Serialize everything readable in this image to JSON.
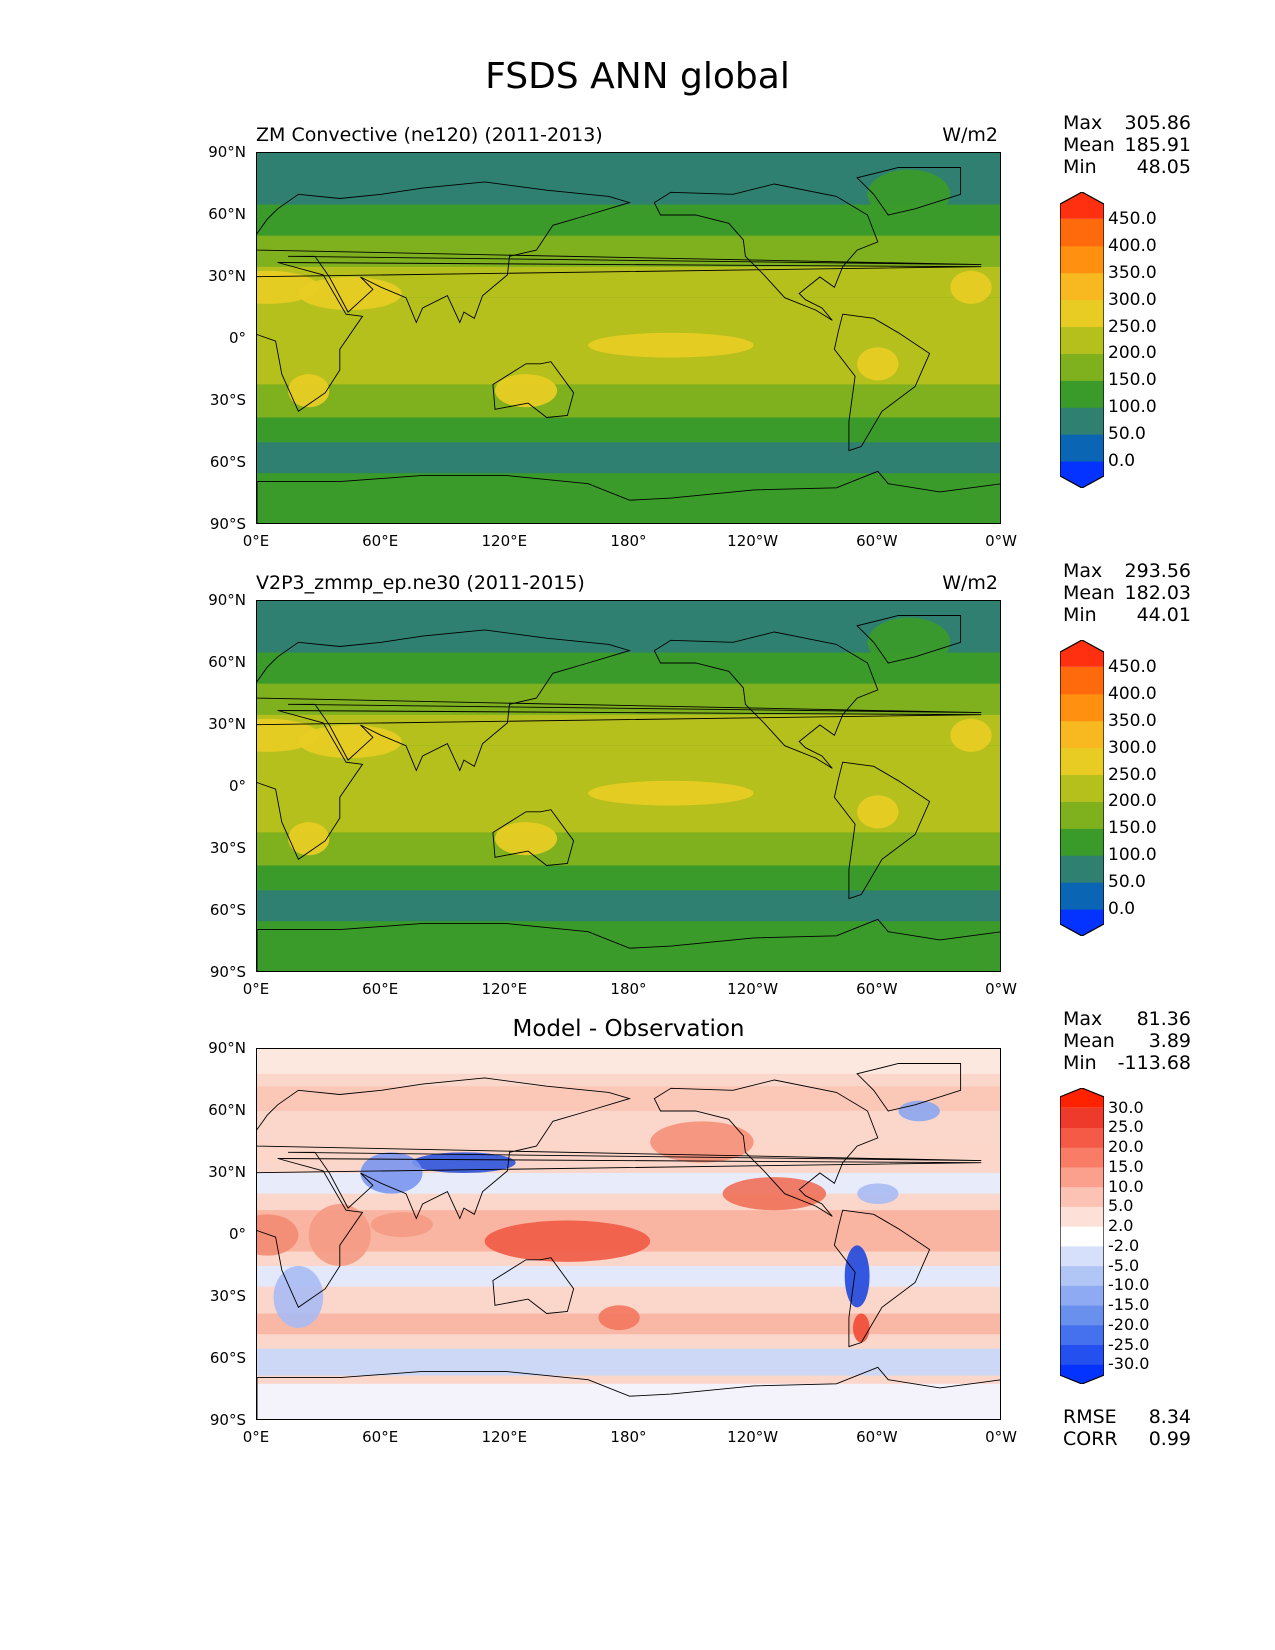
{
  "figure_title": "FSDS ANN global",
  "lat_labels": [
    "90°N",
    "60°N",
    "30°N",
    "0°",
    "30°S",
    "60°S",
    "90°S"
  ],
  "lon_labels": [
    "0°E",
    "60°E",
    "120°E",
    "180°",
    "120°W",
    "60°W",
    "0°W"
  ],
  "panels": [
    {
      "id": "test",
      "title": "ZM Convective (ne120) (2011-2013)",
      "units": "W/m2",
      "stats": {
        "max_label": "Max",
        "max": "305.86",
        "mean_label": "Mean",
        "mean": "185.91",
        "min_label": "Min",
        "min": "48.05"
      },
      "colorbar": {
        "labels": [
          "450.0",
          "400.0",
          "350.0",
          "300.0",
          "250.0",
          "200.0",
          "150.0",
          "100.0",
          "50.0",
          "0.0"
        ],
        "colors": [
          "#0433ff",
          "#0a66b4",
          "#2f8070",
          "#3a9a2a",
          "#7fb01e",
          "#b5c01c",
          "#e8cc24",
          "#f8b820",
          "#ff9010",
          "#ff6a0d",
          "#ff3010"
        ]
      }
    },
    {
      "id": "ref",
      "title": "V2P3_zmmp_ep.ne30 (2011-2015)",
      "units": "W/m2",
      "stats": {
        "max_label": "Max",
        "max": "293.56",
        "mean_label": "Mean",
        "mean": "182.03",
        "min_label": "Min",
        "min": "44.01"
      },
      "colorbar": {
        "labels": [
          "450.0",
          "400.0",
          "350.0",
          "300.0",
          "250.0",
          "200.0",
          "150.0",
          "100.0",
          "50.0",
          "0.0"
        ],
        "colors": [
          "#0433ff",
          "#0a66b4",
          "#2f8070",
          "#3a9a2a",
          "#7fb01e",
          "#b5c01c",
          "#e8cc24",
          "#f8b820",
          "#ff9010",
          "#ff6a0d",
          "#ff3010"
        ]
      }
    },
    {
      "id": "diff",
      "title": "Model - Observation",
      "units": "",
      "stats": {
        "max_label": "Max",
        "max": "81.36",
        "mean_label": "Mean",
        "mean": "3.89",
        "min_label": "Min",
        "min": "-113.68"
      },
      "colorbar": {
        "labels": [
          "30.0",
          "25.0",
          "20.0",
          "15.0",
          "10.0",
          "5.0",
          "2.0",
          "-2.0",
          "-5.0",
          "-10.0",
          "-15.0",
          "-20.0",
          "-25.0",
          "-30.0"
        ],
        "colors": [
          "#0433ff",
          "#2450f0",
          "#4570ee",
          "#6a90ee",
          "#8eaaf2",
          "#b2c6f6",
          "#d6e0fa",
          "#ffffff",
          "#fde0d8",
          "#fcc2b4",
          "#fba08c",
          "#f87c66",
          "#f45a46",
          "#ee3a2a",
          "#ff2200"
        ]
      },
      "rmse_label": "RMSE",
      "rmse": "8.34",
      "corr_label": "CORR",
      "corr": "0.99"
    }
  ]
}
